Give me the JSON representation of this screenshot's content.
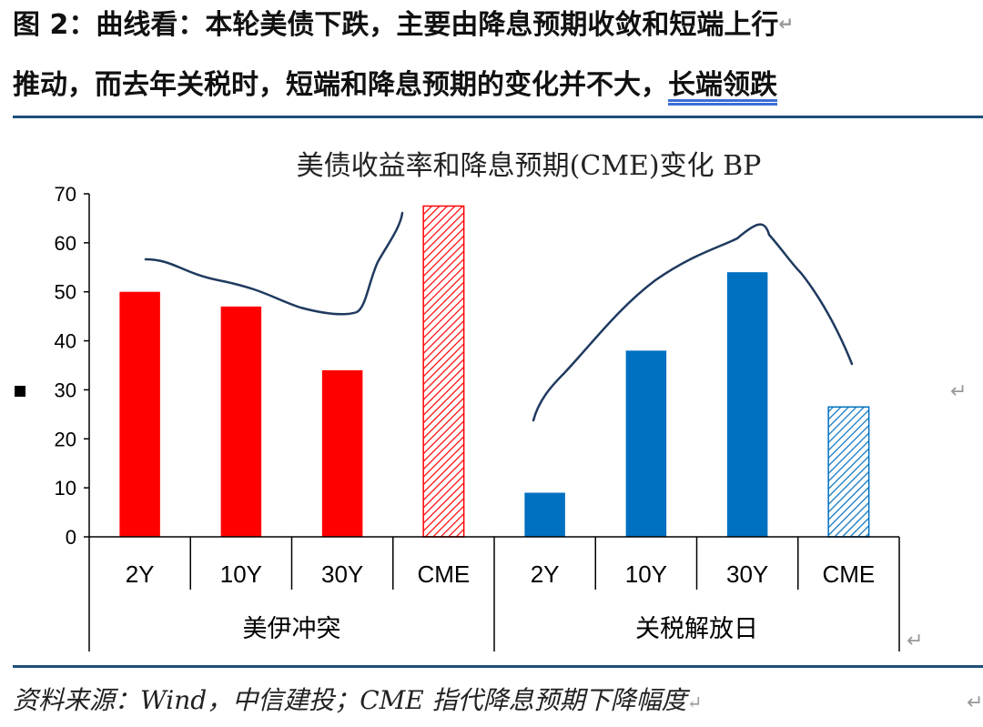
{
  "header": {
    "line1": "图 2：曲线看：本轮美债下跌，主要由降息预期收敛和短端上行",
    "line2_main": "推动，而去年关税时，短端和降息预期的变化并不大，",
    "line2_tail": "长端领跌",
    "return_mark": "↵"
  },
  "source": "资料来源：Wind，中信建投；CME 指代降息预期下降幅度",
  "colors": {
    "red": "#ff0000",
    "red_border": "#e8001c",
    "blue": "#0070c0",
    "curve": "#1f3a5f",
    "rule": "#1f4e79"
  },
  "chart_data": {
    "type": "bar",
    "title": "美债收益率和降息预期(CME)变化 BP",
    "ylim": [
      0,
      70
    ],
    "yticks": [
      0,
      10,
      20,
      30,
      40,
      50,
      60,
      70
    ],
    "groups": [
      {
        "name": "美伊冲突",
        "color": "#ff0000",
        "categories": [
          "2Y",
          "10Y",
          "30Y",
          "CME"
        ],
        "values": [
          50,
          47,
          34,
          67.5
        ],
        "hatched": [
          false,
          false,
          false,
          true
        ]
      },
      {
        "name": "关税解放日",
        "color": "#0070c0",
        "categories": [
          "2Y",
          "10Y",
          "30Y",
          "CME"
        ],
        "values": [
          9,
          38,
          54,
          26.5
        ],
        "hatched": [
          false,
          false,
          false,
          true
        ]
      }
    ]
  }
}
